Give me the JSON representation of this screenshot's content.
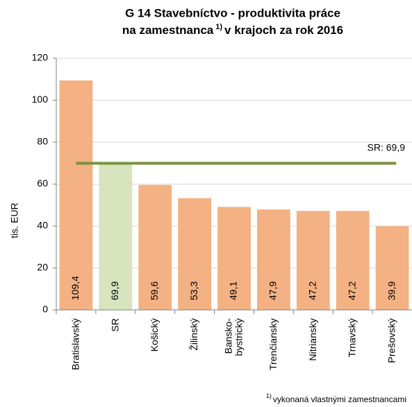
{
  "chart_data": {
    "type": "bar",
    "title": [
      "G 14 Stavebníctvo - produktivita práce",
      "na zamestnanca",
      "1)",
      "v krajoch za rok 2016"
    ],
    "y_label": "tis. EUR",
    "categories": [
      [
        "Bratislavský"
      ],
      [
        "SR"
      ],
      [
        "Košický"
      ],
      [
        "Žilinský"
      ],
      [
        "Bansko-",
        "bystrický"
      ],
      [
        "Trenčiansky"
      ],
      [
        "Nitriansky"
      ],
      [
        "Trnavský"
      ],
      [
        "Prešovský"
      ]
    ],
    "values": [
      109.4,
      69.9,
      59.6,
      53.3,
      49.1,
      47.9,
      47.2,
      47.2,
      39.9
    ],
    "value_labels": [
      "109,4",
      "69,9",
      "59,6",
      "53,3",
      "49,1",
      "47,9",
      "47,2",
      "47,2",
      "39,9"
    ],
    "colors": [
      "#f4b183",
      "#d7e4bd",
      "#f4b183",
      "#f4b183",
      "#f4b183",
      "#f4b183",
      "#f4b183",
      "#f4b183",
      "#f4b183"
    ],
    "ylim": [
      0,
      120
    ],
    "yticks": [
      0,
      20,
      40,
      60,
      80,
      100,
      120
    ],
    "grid": true,
    "reference_line": {
      "value": 69.9,
      "label": "SR: 69,9",
      "color": "#77933c"
    },
    "footnote": {
      "marker": "1)",
      "text": "vykonaná vlastnými zamestnancami"
    }
  }
}
